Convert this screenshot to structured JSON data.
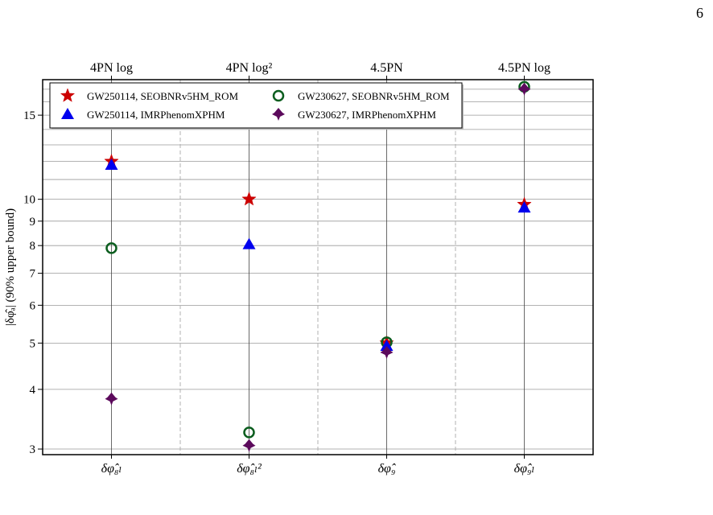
{
  "page": {
    "number": "6"
  },
  "chart_data": {
    "type": "scatter",
    "categories": [
      "δφ̂₈ₗ",
      "δφ̂₈ₗ²",
      "δφ̂₉",
      "δφ̂₉ₗ"
    ],
    "top_labels": [
      "4PN log",
      "4PN log²",
      "4.5PN",
      "4.5PN log"
    ],
    "ylabel": "|δφ̂ₐ| (90% upper bound)",
    "yscale": "log",
    "ylim": [
      2.92,
      17.8
    ],
    "yticks": [
      3,
      4,
      5,
      6,
      7,
      8,
      9,
      10,
      15
    ],
    "grid": true,
    "legend_position": "top-left",
    "series": [
      {
        "name": "GW250114, SEOBNRv5HM_ROM",
        "marker": "star",
        "color": "#cc0000",
        "values": [
          12.0,
          10.0,
          5.0,
          9.75
        ]
      },
      {
        "name": "GW230627, SEOBNRv5HM_ROM",
        "marker": "circle-open",
        "color": "#0b5d1e",
        "values": [
          7.9,
          3.25,
          5.02,
          17.2
        ]
      },
      {
        "name": "GW250114, IMRPhenomXPHM",
        "marker": "triangle",
        "color": "#0000ee",
        "values": [
          11.8,
          8.05,
          4.93,
          9.6
        ]
      },
      {
        "name": "GW230627, IMRPhenomXPHM",
        "marker": "diamond",
        "color": "#5c0a5c",
        "values": [
          3.82,
          3.05,
          4.78,
          17.0
        ]
      }
    ]
  }
}
